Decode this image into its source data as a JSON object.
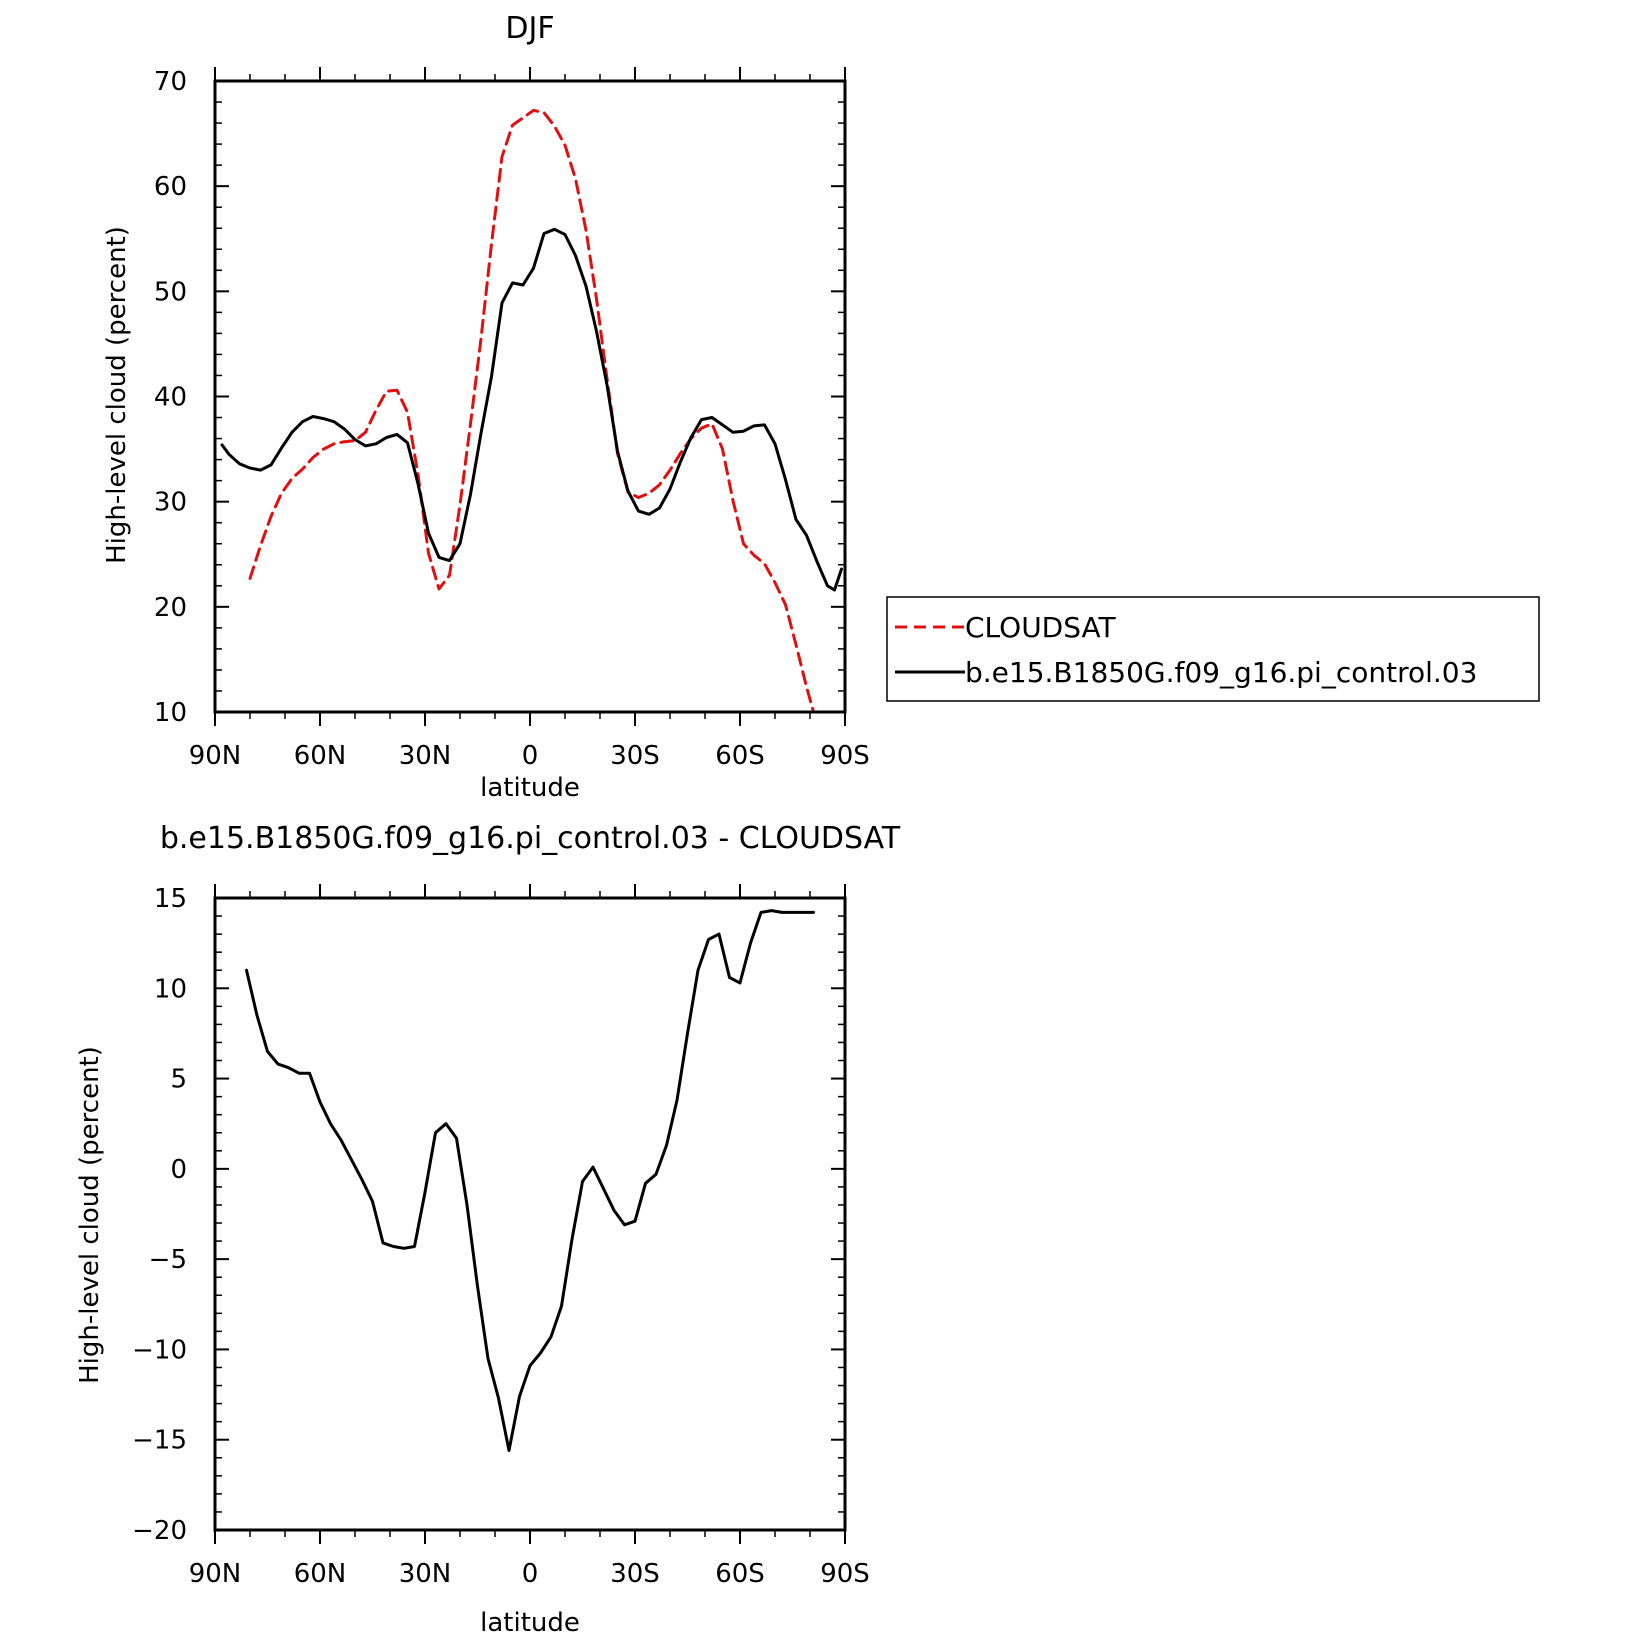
{
  "chart_data": [
    {
      "type": "line",
      "title": "DJF",
      "xlabel": "latitude",
      "ylabel": "High-level cloud (percent)",
      "xlim": [
        90,
        -90
      ],
      "ylim": [
        10,
        70
      ],
      "yticks": [
        10,
        20,
        30,
        40,
        50,
        60,
        70
      ],
      "xticks": [
        {
          "value": 90,
          "label": "90N"
        },
        {
          "value": 60,
          "label": "60N"
        },
        {
          "value": 30,
          "label": "30N"
        },
        {
          "value": 0,
          "label": "0"
        },
        {
          "value": -30,
          "label": "30S"
        },
        {
          "value": -60,
          "label": "60S"
        },
        {
          "value": -90,
          "label": "90S"
        }
      ],
      "grid": false,
      "legend": {
        "position": "right",
        "entries": [
          "CLOUDSAT",
          "b.e15.B1850G.f09_g16.pi_control.03"
        ]
      },
      "series": [
        {
          "name": "CLOUDSAT",
          "color": "#e01010",
          "dash": "dashed",
          "x": [
            80,
            77,
            74,
            71,
            68,
            65,
            62,
            59,
            56,
            53,
            50,
            47,
            44,
            41,
            38,
            35,
            32,
            29,
            26,
            23,
            20,
            17,
            14,
            11,
            8,
            5,
            2,
            -1,
            -4,
            -7,
            -10,
            -13,
            -16,
            -19,
            -22,
            -25,
            -28,
            -31,
            -34,
            -37,
            -40,
            -43,
            -46,
            -49,
            -52,
            -55,
            -58,
            -61,
            -64,
            -67,
            -70,
            -73,
            -76,
            -79,
            -81
          ],
          "values": [
            22.7,
            25.8,
            28.6,
            30.8,
            32.2,
            33.1,
            34.2,
            35.0,
            35.5,
            35.7,
            35.8,
            36.6,
            38.7,
            40.5,
            40.6,
            38.5,
            32.6,
            25.1,
            21.7,
            23.0,
            29.7,
            37.4,
            45.5,
            54.5,
            62.8,
            65.8,
            66.5,
            67.2,
            67.0,
            65.7,
            63.9,
            60.7,
            55.8,
            49.3,
            41.7,
            34.6,
            30.9,
            30.4,
            30.8,
            31.6,
            33.0,
            34.6,
            36.0,
            37.0,
            37.4,
            35.0,
            30.1,
            26.0,
            24.9,
            24.1,
            22.3,
            20.2,
            16.4,
            12.4,
            9.7
          ]
        },
        {
          "name": "b.e15.B1850G.f09_g16.pi_control.03",
          "color": "#000000",
          "dash": "solid",
          "x": [
            88,
            86,
            83,
            80,
            77,
            74,
            71,
            68,
            65,
            62,
            59,
            56,
            53,
            50,
            47,
            44,
            41,
            38,
            35,
            32,
            29,
            26,
            23,
            20,
            17,
            14,
            11,
            8,
            5,
            2,
            -1,
            -4,
            -7,
            -10,
            -13,
            -16,
            -19,
            -22,
            -25,
            -28,
            -31,
            -34,
            -37,
            -40,
            -43,
            -46,
            -49,
            -52,
            -55,
            -58,
            -61,
            -64,
            -67,
            -70,
            -73,
            -76,
            -79,
            -82,
            -85,
            -87,
            -89
          ],
          "values": [
            35.4,
            34.5,
            33.6,
            33.2,
            33.0,
            33.5,
            35.1,
            36.6,
            37.6,
            38.1,
            37.9,
            37.6,
            36.9,
            35.9,
            35.3,
            35.5,
            36.1,
            36.4,
            35.6,
            31.7,
            27.0,
            24.7,
            24.4,
            26.0,
            30.7,
            36.5,
            41.9,
            48.9,
            50.8,
            50.6,
            52.2,
            55.5,
            55.9,
            55.4,
            53.4,
            50.5,
            46.2,
            41.1,
            34.8,
            31.0,
            29.1,
            28.8,
            29.4,
            31.2,
            33.8,
            36.1,
            37.8,
            38.0,
            37.3,
            36.6,
            36.7,
            37.2,
            37.3,
            35.5,
            32.1,
            28.3,
            26.8,
            24.3,
            22.0,
            21.6,
            23.6
          ]
        }
      ]
    },
    {
      "type": "line",
      "title": "b.e15.B1850G.f09_g16.pi_control.03 - CLOUDSAT",
      "xlabel": "latitude",
      "ylabel": "High-level cloud (percent)",
      "xlim": [
        90,
        -90
      ],
      "ylim": [
        -20,
        15
      ],
      "yticks": [
        -20,
        -15,
        -10,
        -5,
        0,
        5,
        10,
        15
      ],
      "xticks": [
        {
          "value": 90,
          "label": "90N"
        },
        {
          "value": 60,
          "label": "60N"
        },
        {
          "value": 30,
          "label": "30N"
        },
        {
          "value": 0,
          "label": "0"
        },
        {
          "value": -30,
          "label": "30S"
        },
        {
          "value": -60,
          "label": "60S"
        },
        {
          "value": -90,
          "label": "90S"
        }
      ],
      "grid": false,
      "series": [
        {
          "color": "#000000",
          "dash": "solid",
          "x": [
            81,
            78,
            75,
            72,
            69,
            66,
            63,
            60,
            57,
            54,
            51,
            48,
            45,
            42,
            39,
            36,
            33,
            30,
            27,
            24,
            21,
            18,
            15,
            12,
            9,
            6,
            3,
            0,
            -3,
            -6,
            -9,
            -12,
            -15,
            -18,
            -21,
            -24,
            -27,
            -30,
            -33,
            -36,
            -39,
            -42,
            -45,
            -48,
            -51,
            -54,
            -57,
            -60,
            -63,
            -66,
            -69,
            -72,
            -75,
            -78,
            -81
          ],
          "values": [
            11.0,
            8.5,
            6.5,
            5.8,
            5.6,
            5.3,
            5.3,
            3.7,
            2.5,
            1.6,
            0.5,
            -0.6,
            -1.8,
            -4.1,
            -4.3,
            -4.4,
            -4.3,
            -1.3,
            2.0,
            2.5,
            1.7,
            -2.0,
            -6.5,
            -10.5,
            -12.7,
            -15.6,
            -12.6,
            -10.9,
            -10.2,
            -9.3,
            -7.6,
            -3.9,
            -0.7,
            0.1,
            -1.1,
            -2.3,
            -3.1,
            -2.9,
            -0.8,
            -0.3,
            1.3,
            3.8,
            7.5,
            11.0,
            12.7,
            13.0,
            10.6,
            10.3,
            12.5,
            14.2,
            14.3,
            14.2,
            14.2,
            14.2,
            14.2
          ]
        }
      ]
    }
  ]
}
